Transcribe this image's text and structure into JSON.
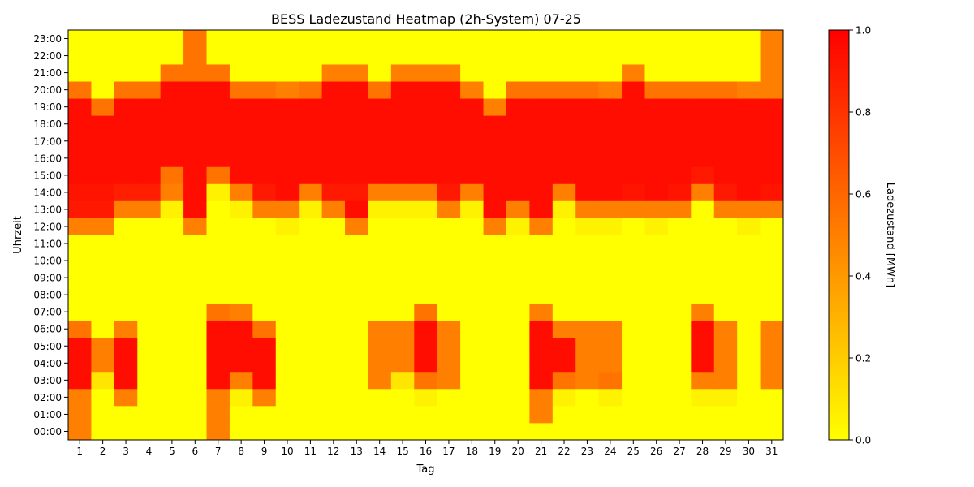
{
  "chart_data": {
    "type": "heatmap",
    "title": "BESS Ladezustand Heatmap (2h-System) 07-25",
    "xlabel": "Tag",
    "ylabel": "Uhrzeit",
    "colorbar_label": "Ladezustand [MWh]",
    "colormap": "autumn_r",
    "color_low": "#ffff00",
    "color_high": "#ff0000",
    "vmin": 0.0,
    "vmax": 1.0,
    "colorbar_ticks": [
      "0.0",
      "0.2",
      "0.4",
      "0.6",
      "0.8",
      "1.0"
    ],
    "x_labels": [
      "1",
      "2",
      "3",
      "4",
      "5",
      "6",
      "7",
      "8",
      "9",
      "10",
      "11",
      "12",
      "13",
      "14",
      "15",
      "16",
      "17",
      "18",
      "19",
      "20",
      "21",
      "22",
      "23",
      "24",
      "25",
      "26",
      "27",
      "28",
      "29",
      "30",
      "31"
    ],
    "y_labels": [
      "00:00",
      "01:00",
      "02:00",
      "03:00",
      "04:00",
      "05:00",
      "06:00",
      "07:00",
      "08:00",
      "09:00",
      "10:00",
      "11:00",
      "12:00",
      "13:00",
      "14:00",
      "15:00",
      "16:00",
      "17:00",
      "18:00",
      "19:00",
      "20:00",
      "21:00",
      "22:00",
      "23:00"
    ],
    "values": [
      [
        0.5,
        0,
        0,
        0,
        0,
        0,
        0.5,
        0,
        0,
        0,
        0,
        0,
        0,
        0,
        0,
        0,
        0,
        0,
        0,
        0,
        0,
        0,
        0,
        0,
        0,
        0,
        0,
        0,
        0,
        0,
        0
      ],
      [
        0.5,
        0,
        0,
        0,
        0,
        0,
        0.5,
        0,
        0,
        0,
        0,
        0,
        0,
        0,
        0,
        0,
        0,
        0,
        0,
        0,
        0.5,
        0,
        0,
        0,
        0,
        0,
        0,
        0,
        0,
        0,
        0
      ],
      [
        0.5,
        0,
        0.5,
        0,
        0,
        0,
        0.5,
        0.05,
        0.5,
        0,
        0,
        0,
        0,
        0,
        0,
        0.05,
        0,
        0,
        0,
        0,
        0.5,
        0.05,
        0,
        0.05,
        0,
        0,
        0,
        0.05,
        0.05,
        0,
        0
      ],
      [
        0.95,
        0.1,
        0.95,
        0,
        0,
        0,
        0.95,
        0.5,
        0.95,
        0,
        0,
        0,
        0,
        0.5,
        0.1,
        0.55,
        0.5,
        0,
        0,
        0,
        0.95,
        0.55,
        0.5,
        0.55,
        0,
        0,
        0,
        0.5,
        0.5,
        0,
        0.5
      ],
      [
        0.95,
        0.5,
        0.95,
        0,
        0,
        0,
        0.95,
        0.95,
        0.95,
        0,
        0,
        0,
        0,
        0.5,
        0.5,
        0.95,
        0.5,
        0,
        0,
        0,
        0.95,
        0.95,
        0.5,
        0.5,
        0,
        0,
        0,
        0.95,
        0.5,
        0,
        0.5
      ],
      [
        0.95,
        0.5,
        0.95,
        0,
        0,
        0,
        0.95,
        0.95,
        0.95,
        0,
        0,
        0,
        0,
        0.5,
        0.5,
        0.95,
        0.5,
        0,
        0,
        0,
        0.95,
        0.95,
        0.5,
        0.5,
        0,
        0,
        0,
        0.95,
        0.5,
        0,
        0.5
      ],
      [
        0.55,
        0,
        0.5,
        0,
        0,
        0,
        0.95,
        0.95,
        0.55,
        0,
        0,
        0,
        0,
        0.5,
        0.5,
        0.95,
        0.5,
        0,
        0,
        0,
        0.95,
        0.5,
        0.5,
        0.5,
        0,
        0,
        0,
        0.95,
        0.5,
        0,
        0.5
      ],
      [
        0,
        0,
        0,
        0,
        0,
        0,
        0.55,
        0.5,
        0,
        0,
        0,
        0,
        0,
        0,
        0,
        0.55,
        0,
        0,
        0,
        0,
        0.5,
        0,
        0,
        0,
        0,
        0,
        0,
        0.5,
        0,
        0,
        0
      ],
      [
        0,
        0,
        0,
        0,
        0,
        0,
        0,
        0,
        0,
        0,
        0,
        0,
        0,
        0,
        0,
        0,
        0,
        0,
        0,
        0,
        0,
        0,
        0,
        0,
        0,
        0,
        0,
        0,
        0,
        0,
        0
      ],
      [
        0,
        0,
        0,
        0,
        0,
        0,
        0,
        0,
        0,
        0,
        0,
        0,
        0,
        0,
        0,
        0,
        0,
        0,
        0,
        0,
        0,
        0,
        0,
        0,
        0,
        0,
        0,
        0,
        0,
        0,
        0
      ],
      [
        0,
        0,
        0,
        0,
        0,
        0,
        0,
        0,
        0,
        0,
        0,
        0,
        0,
        0,
        0,
        0,
        0,
        0,
        0,
        0,
        0,
        0,
        0,
        0,
        0,
        0,
        0,
        0,
        0,
        0,
        0
      ],
      [
        0,
        0,
        0,
        0,
        0,
        0,
        0,
        0,
        0,
        0,
        0,
        0,
        0,
        0,
        0,
        0,
        0,
        0,
        0,
        0,
        0,
        0,
        0,
        0,
        0,
        0,
        0,
        0,
        0,
        0,
        0
      ],
      [
        0.5,
        0.5,
        0,
        0,
        0,
        0.5,
        0,
        0,
        0,
        0.05,
        0,
        0,
        0.5,
        0,
        0,
        0,
        0,
        0,
        0.5,
        0.05,
        0.5,
        0,
        0.05,
        0.05,
        0,
        0.05,
        0,
        0,
        0,
        0.05,
        0
      ],
      [
        0.9,
        0.9,
        0.5,
        0.5,
        0.05,
        0.95,
        0,
        0.05,
        0.5,
        0.5,
        0.05,
        0.5,
        0.95,
        0.05,
        0.05,
        0.05,
        0.5,
        0.05,
        0.95,
        0.5,
        0.95,
        0.05,
        0.5,
        0.5,
        0.5,
        0.5,
        0.5,
        0,
        0.5,
        0.5,
        0.5
      ],
      [
        0.92,
        0.92,
        0.88,
        0.88,
        0.5,
        0.95,
        0.05,
        0.5,
        0.9,
        0.95,
        0.5,
        0.9,
        0.9,
        0.5,
        0.5,
        0.5,
        0.9,
        0.5,
        0.95,
        0.95,
        0.95,
        0.5,
        0.95,
        0.95,
        0.92,
        0.95,
        0.92,
        0.5,
        0.9,
        0.95,
        0.92
      ],
      [
        0.95,
        0.95,
        0.95,
        0.95,
        0.55,
        0.95,
        0.55,
        0.95,
        0.95,
        0.95,
        0.95,
        0.95,
        0.95,
        0.95,
        0.95,
        0.95,
        0.95,
        0.95,
        0.95,
        0.95,
        0.95,
        0.95,
        0.95,
        0.95,
        0.95,
        0.95,
        0.95,
        0.9,
        0.95,
        0.95,
        0.95
      ],
      [
        0.95,
        0.95,
        0.95,
        0.95,
        0.95,
        0.95,
        0.95,
        0.95,
        0.95,
        0.95,
        0.95,
        0.95,
        0.95,
        0.95,
        0.95,
        0.95,
        0.95,
        0.95,
        0.95,
        0.95,
        0.95,
        0.95,
        0.95,
        0.95,
        0.95,
        0.95,
        0.95,
        0.95,
        0.95,
        0.95,
        0.95
      ],
      [
        0.95,
        0.95,
        0.95,
        0.95,
        0.95,
        0.95,
        0.95,
        0.95,
        0.95,
        0.95,
        0.95,
        0.95,
        0.95,
        0.95,
        0.95,
        0.95,
        0.95,
        0.95,
        0.95,
        0.95,
        0.95,
        0.95,
        0.95,
        0.95,
        0.95,
        0.95,
        0.95,
        0.95,
        0.95,
        0.95,
        0.95
      ],
      [
        0.95,
        0.95,
        0.95,
        0.95,
        0.95,
        0.95,
        0.95,
        0.95,
        0.95,
        0.95,
        0.95,
        0.95,
        0.95,
        0.95,
        0.95,
        0.95,
        0.95,
        0.95,
        0.95,
        0.95,
        0.95,
        0.95,
        0.95,
        0.95,
        0.95,
        0.95,
        0.95,
        0.95,
        0.95,
        0.95,
        0.95
      ],
      [
        0.95,
        0.55,
        0.95,
        0.95,
        0.95,
        0.95,
        0.95,
        0.95,
        0.95,
        0.95,
        0.95,
        0.95,
        0.95,
        0.95,
        0.95,
        0.95,
        0.95,
        0.95,
        0.5,
        0.95,
        0.95,
        0.95,
        0.95,
        0.95,
        0.95,
        0.95,
        0.95,
        0.95,
        0.95,
        0.95,
        0.95
      ],
      [
        0.55,
        0,
        0.55,
        0.55,
        0.95,
        0.95,
        0.95,
        0.55,
        0.55,
        0.5,
        0.55,
        0.95,
        0.95,
        0.55,
        0.95,
        0.95,
        0.95,
        0.5,
        0,
        0.55,
        0.55,
        0.55,
        0.55,
        0.5,
        0.95,
        0.55,
        0.55,
        0.55,
        0.55,
        0.5,
        0.5
      ],
      [
        0,
        0,
        0,
        0,
        0.55,
        0.55,
        0.55,
        0,
        0,
        0,
        0,
        0.5,
        0.5,
        0,
        0.5,
        0.5,
        0.5,
        0,
        0,
        0,
        0,
        0,
        0,
        0,
        0.5,
        0,
        0,
        0,
        0,
        0,
        0.5
      ],
      [
        0,
        0,
        0,
        0,
        0,
        0.55,
        0,
        0,
        0,
        0,
        0,
        0,
        0,
        0,
        0,
        0,
        0,
        0,
        0,
        0,
        0,
        0,
        0,
        0,
        0,
        0,
        0,
        0,
        0,
        0,
        0.5
      ],
      [
        0,
        0,
        0,
        0,
        0,
        0.55,
        0,
        0,
        0,
        0,
        0,
        0,
        0,
        0,
        0,
        0,
        0,
        0,
        0,
        0,
        0,
        0,
        0,
        0,
        0,
        0,
        0,
        0,
        0,
        0,
        0.5
      ]
    ]
  }
}
